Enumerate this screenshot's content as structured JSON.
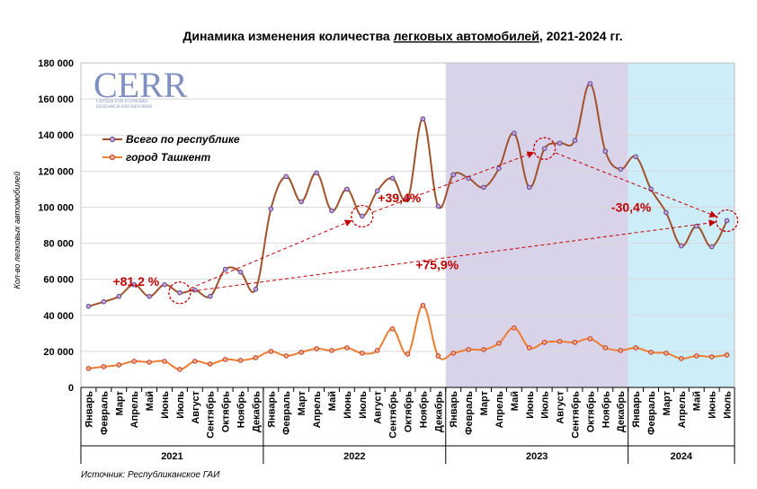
{
  "title_prefix": "Динамика изменения количества ",
  "title_underlined": "легковых автомобилей",
  "title_suffix": ", 2021-2024 гг.",
  "logo": {
    "text": "CERR",
    "subtitle_line1": "CENTER FOR ECONOMIC",
    "subtitle_line2": "RESEARCH AND REFORMS"
  },
  "source": "Источник: Республиканское ГАИ",
  "colors": {
    "total_line": "#a0522d",
    "total_marker": "#5b4a8a",
    "tashkent_line": "#ed7d31",
    "tashkent_marker": "#c0392b",
    "band_2023": "#d9d3ea",
    "band_2024": "#cdeef9",
    "annotation": "#c00000",
    "grid": "#d9d9d9"
  },
  "chart_data": {
    "type": "line",
    "title": "Динамика изменения количества легковых автомобилей, 2021-2024 гг.",
    "ylabel": "Кол-во легковых автомобилей",
    "ylim": [
      0,
      180000
    ],
    "yticks": [
      0,
      20000,
      40000,
      60000,
      80000,
      100000,
      120000,
      140000,
      160000,
      180000
    ],
    "ytick_labels": [
      "0",
      "20 000",
      "40 000",
      "60 000",
      "80 000",
      "100 000",
      "120 000",
      "140 000",
      "160 000",
      "180 000"
    ],
    "grid": true,
    "legend_position": "top-left",
    "categories": [
      "Январь",
      "Февраль",
      "Март",
      "Апрель",
      "Май",
      "Июнь",
      "Июль",
      "Август",
      "Сентябрь",
      "Октябрь",
      "Ноябрь",
      "Декабрь",
      "Январь",
      "Февраль",
      "Март",
      "Апрель",
      "Май",
      "Июнь",
      "Июль",
      "Август",
      "Сентябрь",
      "Октябрь",
      "Ноябрь",
      "Декабрь",
      "Январь",
      "Февраль",
      "Март",
      "Апрель",
      "Май",
      "Июнь",
      "Июль",
      "Август",
      "Сентябрь",
      "Октябрь",
      "Ноябрь",
      "Декабрь",
      "Январь",
      "Февраль",
      "Март",
      "Апрель",
      "Май",
      "Июнь",
      "Июль"
    ],
    "years": [
      {
        "label": "2021",
        "start": 0,
        "end": 11
      },
      {
        "label": "2022",
        "start": 12,
        "end": 23
      },
      {
        "label": "2023",
        "start": 24,
        "end": 35
      },
      {
        "label": "2024",
        "start": 36,
        "end": 42
      }
    ],
    "series": [
      {
        "name": "Всего по республике",
        "values": [
          45000,
          47500,
          50500,
          57000,
          50500,
          57000,
          52500,
          54000,
          50500,
          65500,
          64000,
          54500,
          99000,
          117000,
          103000,
          119000,
          98000,
          110000,
          95000,
          109000,
          116000,
          104500,
          149000,
          100500,
          118000,
          116000,
          111000,
          121500,
          141000,
          111000,
          132500,
          135500,
          137000,
          168500,
          131000,
          121000,
          128000,
          110000,
          97000,
          78500,
          89500,
          78000,
          92500
        ]
      },
      {
        "name": "город Ташкент",
        "values": [
          10500,
          11500,
          12500,
          14500,
          14000,
          14500,
          10000,
          14500,
          13000,
          15500,
          15000,
          16500,
          20000,
          17500,
          19500,
          21500,
          20500,
          22000,
          19000,
          20500,
          32500,
          18500,
          45500,
          17500,
          19000,
          21000,
          21000,
          24500,
          33000,
          22000,
          25000,
          25500,
          25000,
          27000,
          22000,
          20500,
          22000,
          19500,
          19000,
          16000,
          17500,
          17000,
          18000
        ]
      }
    ],
    "annotations": [
      {
        "text": "+81,2 %",
        "from": 6,
        "to": 18
      },
      {
        "text": "+75,9%",
        "from": 6,
        "to": 42
      },
      {
        "text": "+39,4%",
        "from": 18,
        "to": 30
      },
      {
        "text": "-30,4%",
        "from": 30,
        "to": 42
      }
    ]
  }
}
